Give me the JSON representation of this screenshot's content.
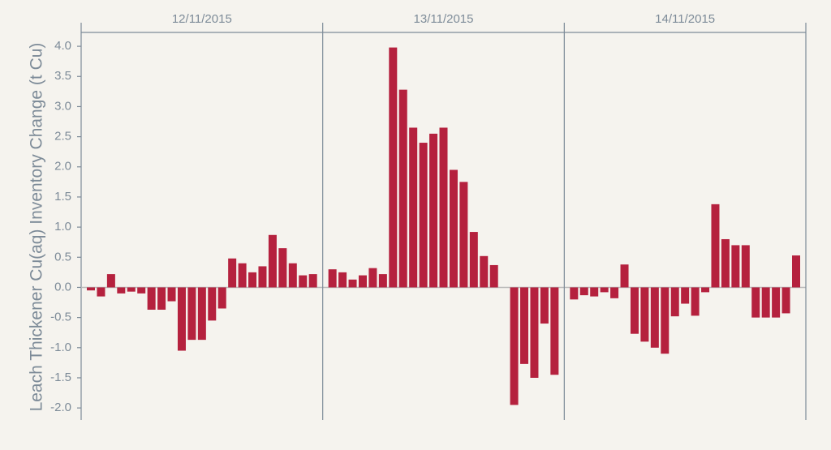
{
  "chart_data": {
    "type": "bar",
    "y_label": "Leach Thickener Cu(aq) Inventory Change (t Cu)",
    "color": "#b5213e",
    "ylim": [
      -2.2,
      4.23
    ],
    "yticks": [
      {
        "value": 4,
        "label": "4.0"
      },
      3.5,
      {
        "value": 3,
        "label": "3.0"
      },
      2.5,
      {
        "value": 2,
        "label": "2.0"
      },
      1.5,
      {
        "value": 1,
        "label": "1.0"
      },
      0.5,
      {
        "value": 0,
        "label": "0.0"
      },
      -0.5,
      {
        "value": -1,
        "label": "-1.0"
      },
      -1.5,
      {
        "value": -2,
        "label": "-2.0"
      }
    ],
    "panels": [
      {
        "label": "12/11/2015",
        "values": [
          -0.05,
          -0.15,
          0.22,
          -0.1,
          -0.07,
          -0.1,
          -0.37,
          -0.37,
          -0.23,
          -1.05,
          -0.87,
          -0.87,
          -0.55,
          -0.35,
          0.48,
          0.4,
          0.25,
          0.35,
          0.87,
          0.65,
          0.4,
          0.2,
          0.22
        ]
      },
      {
        "label": "13/11/2015",
        "values": [
          0.3,
          0.25,
          0.13,
          0.2,
          0.32,
          0.22,
          3.98,
          3.28,
          2.65,
          2.4,
          2.55,
          2.65,
          1.95,
          1.75,
          0.92,
          0.52,
          0.37,
          0,
          -1.95,
          -1.27,
          -1.5,
          -0.6,
          -1.45
        ]
      },
      {
        "label": "14/11/2015",
        "values": [
          -0.2,
          -0.13,
          -0.15,
          -0.08,
          -0.18,
          0.38,
          -0.77,
          -0.9,
          -1.0,
          -1.1,
          -0.48,
          -0.27,
          -0.47,
          -0.08,
          1.38,
          0.8,
          0.7,
          0.7,
          -0.5,
          -0.5,
          -0.5,
          -0.43,
          0.53
        ]
      }
    ]
  }
}
